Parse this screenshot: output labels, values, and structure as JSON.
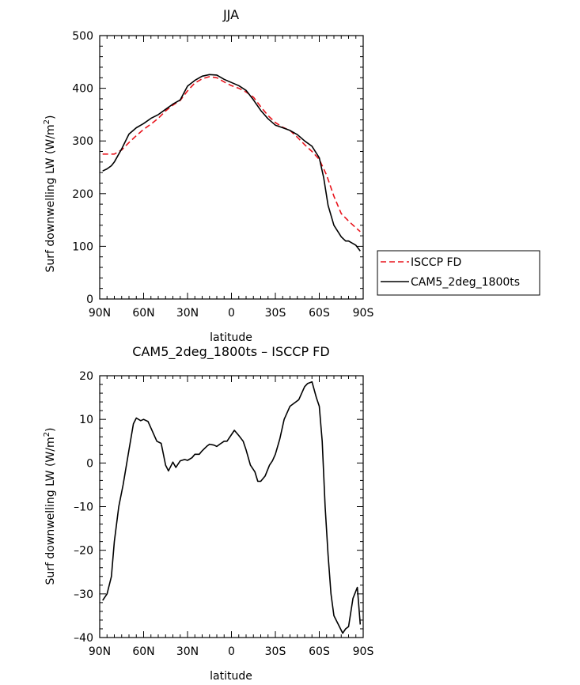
{
  "chart_data": [
    {
      "type": "line",
      "title": "JJA",
      "xlabel": "latitude",
      "ylabel": "Surf downwelling LW (W/m²)",
      "ylabel_main": "Surf downwelling LW (W/m",
      "ylabel_sup": "2",
      "ylabel_close": ")",
      "xlim": [
        90,
        -90
      ],
      "ylim": [
        0,
        500
      ],
      "xticks": [
        90,
        60,
        30,
        0,
        -30,
        -60,
        -90
      ],
      "xtick_labels": [
        "90N",
        "60N",
        "30N",
        "0",
        "30S",
        "60S",
        "90S"
      ],
      "yticks": [
        0,
        100,
        200,
        300,
        400,
        500
      ],
      "ytick_labels": [
        "0",
        "100",
        "200",
        "300",
        "400",
        "500"
      ],
      "legend_position": "right",
      "series": [
        {
          "name": "ISCCP FD",
          "color": "#e8141c",
          "dash": "dashed",
          "x": [
            88,
            85,
            80,
            75,
            70,
            65,
            60,
            55,
            50,
            45,
            40,
            35,
            30,
            25,
            20,
            15,
            10,
            5,
            0,
            -5,
            -10,
            -15,
            -20,
            -25,
            -30,
            -35,
            -40,
            -45,
            -50,
            -55,
            -60,
            -65,
            -70,
            -75,
            -80,
            -85,
            -88
          ],
          "y": [
            275,
            275,
            275,
            283,
            297,
            310,
            322,
            332,
            343,
            357,
            368,
            377,
            395,
            410,
            418,
            422,
            420,
            412,
            405,
            400,
            393,
            383,
            365,
            348,
            335,
            326,
            320,
            307,
            293,
            280,
            265,
            235,
            195,
            162,
            148,
            135,
            128
          ]
        },
        {
          "name": "CAM5_2deg_1800ts",
          "color": "#000000",
          "dash": "solid",
          "x": [
            88,
            85,
            82,
            80,
            75,
            70,
            65,
            60,
            55,
            50,
            45,
            40,
            35,
            30,
            25,
            20,
            15,
            10,
            5,
            0,
            -5,
            -10,
            -15,
            -20,
            -25,
            -30,
            -35,
            -40,
            -45,
            -50,
            -55,
            -60,
            -63,
            -66,
            -70,
            -75,
            -78,
            -80,
            -85,
            -88
          ],
          "y": [
            243,
            247,
            253,
            260,
            285,
            313,
            325,
            333,
            343,
            350,
            360,
            370,
            378,
            404,
            415,
            423,
            426,
            425,
            417,
            411,
            405,
            396,
            378,
            358,
            342,
            330,
            325,
            320,
            312,
            300,
            290,
            268,
            230,
            178,
            140,
            118,
            110,
            110,
            102,
            91
          ]
        }
      ]
    },
    {
      "type": "line",
      "title": "CAM5_2deg_1800ts – ISCCP FD",
      "xlabel": "latitude",
      "ylabel": "Surf downwelling LW (W/m²)",
      "ylabel_main": "Surf downwelling LW (W/m",
      "ylabel_sup": "2",
      "ylabel_close": ")",
      "xlim": [
        90,
        -90
      ],
      "ylim": [
        -40,
        20
      ],
      "xticks": [
        90,
        60,
        30,
        0,
        -30,
        -60,
        -90
      ],
      "xtick_labels": [
        "90N",
        "60N",
        "30N",
        "0",
        "30S",
        "60S",
        "90S"
      ],
      "yticks": [
        -40,
        -30,
        -20,
        -10,
        0,
        10,
        20
      ],
      "ytick_labels": [
        "–40",
        "–30",
        "–20",
        "–10",
        "0",
        "10",
        "20"
      ],
      "series": [
        {
          "name": "",
          "color": "#000000",
          "dash": "solid",
          "x": [
            88,
            85,
            82,
            80,
            77,
            74,
            70,
            67,
            65,
            62,
            60,
            57,
            55,
            51,
            48,
            45,
            43,
            40,
            38,
            35,
            32,
            30,
            27,
            25,
            22,
            20,
            17,
            15,
            12,
            10,
            8,
            5,
            3,
            0,
            -2,
            -5,
            -8,
            -10,
            -13,
            -16,
            -18,
            -20,
            -23,
            -26,
            -28,
            -30,
            -33,
            -36,
            -40,
            -44,
            -46,
            -48,
            -50,
            -52,
            -55,
            -58,
            -60,
            -62,
            -64,
            -66,
            -68,
            -70,
            -73,
            -76,
            -78,
            -80,
            -83,
            -86,
            -88
          ],
          "y": [
            -31.5,
            -30,
            -26,
            -18,
            -10,
            -5,
            3,
            9,
            10.3,
            9.7,
            10,
            9.5,
            8,
            5,
            4.5,
            -0.5,
            -1.8,
            0.2,
            -1,
            0.5,
            0.8,
            0.6,
            1.2,
            2,
            2,
            2.8,
            3.8,
            4.3,
            4.1,
            3.8,
            4.3,
            5,
            5,
            6.5,
            7.5,
            6.3,
            5,
            3,
            -0.5,
            -2,
            -4.2,
            -4.2,
            -3,
            -0.5,
            0.5,
            2,
            5.5,
            10,
            13,
            14,
            14.5,
            16,
            17.5,
            18.2,
            18.6,
            15,
            13,
            5,
            -10,
            -21,
            -30,
            -35,
            -37,
            -39,
            -38,
            -37.5,
            -31,
            -28.5,
            -37
          ]
        }
      ]
    }
  ]
}
